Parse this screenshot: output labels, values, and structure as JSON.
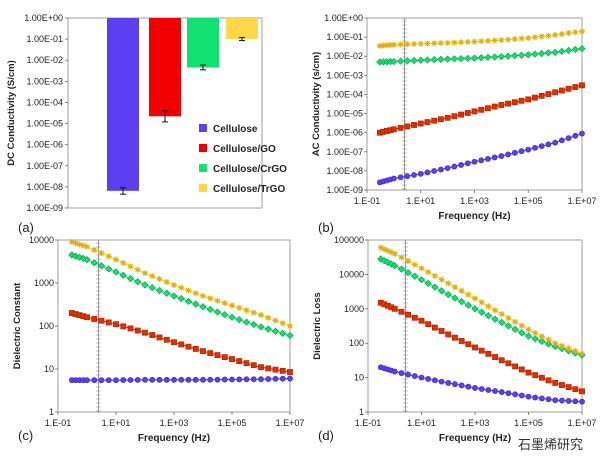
{
  "watermark": "石墨烯研究",
  "chart_data": [
    {
      "panel_label": "(a)",
      "type": "bar",
      "ylabel": "DC Conductivity (S/cm)",
      "yscale": "log",
      "ylim": [
        1e-09,
        1
      ],
      "yticks": [
        "1.00E+00",
        "1.00E-01",
        "1.00E-02",
        "1.00E-03",
        "1.00E-04",
        "1.00E-05",
        "1.00E-06",
        "1.00E-07",
        "1.00E-08",
        "1.00E-09"
      ],
      "categories": [
        "Cellulose",
        "Cellulose/GO",
        "Cellulose/CrGO",
        "Cellulose/TrGO"
      ],
      "values": [
        6.5e-09,
        2.2e-05,
        0.0045,
        0.1
      ],
      "errors": [
        [
          4.5e-09,
          9e-09
        ],
        [
          1.2e-05,
          4e-05
        ],
        [
          0.0035,
          0.006
        ],
        [
          0.085,
          0.12
        ]
      ],
      "colors": [
        "#5b3ff0",
        "#f00000",
        "#12e070",
        "#ffd84a"
      ],
      "legend": [
        "Cellulose",
        "Cellulose/GO",
        "Cellulose/CrGO",
        "Cellulose/TrGO"
      ],
      "legend_position": "lower-right"
    },
    {
      "panel_label": "(b)",
      "type": "line",
      "xlabel": "Frequency (Hz)",
      "ylabel": "AC Conductivity (s/cm)",
      "xscale": "log",
      "yscale": "log",
      "xlim": [
        0.1,
        10000000.0
      ],
      "ylim": [
        1e-09,
        1
      ],
      "xticks": [
        "1.E-01",
        "1.E+01",
        "1.E+03",
        "1.E+05",
        "1.E+07"
      ],
      "yticks": [
        "1.00E+00",
        "1.00E-01",
        "1.00E-02",
        "1.00E-03",
        "1.00E-04",
        "1.00E-05",
        "1.00E-06",
        "1.00E-07",
        "1.00E-08",
        "1.00E-09"
      ],
      "vline_x": 2.5,
      "series": [
        {
          "color": "#5b3ff0",
          "marker": "circle",
          "x": [
            0.3,
            1,
            10,
            100,
            1000,
            10000,
            100000,
            1000000,
            10000000
          ],
          "y": [
            2.5e-09,
            4e-09,
            7e-09,
            1.4e-08,
            3e-08,
            6e-08,
            1.3e-07,
            3e-07,
            9e-07
          ]
        },
        {
          "color": "#e03000",
          "marker": "square",
          "x": [
            0.3,
            1,
            10,
            100,
            1000,
            10000,
            100000,
            1000000,
            10000000
          ],
          "y": [
            1e-06,
            1.5e-06,
            3e-06,
            6e-06,
            1.3e-05,
            2.8e-05,
            5.5e-05,
            0.00013,
            0.0003
          ]
        },
        {
          "color": "#12e070",
          "marker": "diamond",
          "x": [
            0.3,
            1,
            10,
            100,
            1000,
            10000,
            100000,
            1000000,
            10000000
          ],
          "y": [
            0.005,
            0.0053,
            0.0062,
            0.007,
            0.008,
            0.0095,
            0.012,
            0.016,
            0.025
          ]
        },
        {
          "color": "#ffd84a",
          "marker": "star",
          "x": [
            0.3,
            1,
            10,
            100,
            1000,
            10000,
            100000,
            1000000,
            10000000
          ],
          "y": [
            0.035,
            0.04,
            0.045,
            0.05,
            0.058,
            0.07,
            0.09,
            0.13,
            0.2
          ]
        }
      ]
    },
    {
      "panel_label": "(c)",
      "type": "line",
      "xlabel": "Frequency (Hz)",
      "ylabel": "Dielectric Constant",
      "xscale": "log",
      "yscale": "log",
      "xlim": [
        0.1,
        10000000.0
      ],
      "ylim": [
        1,
        10000
      ],
      "xticks": [
        "1.E-01",
        "1.E+01",
        "1.E+03",
        "1.E+05",
        "1.E+07"
      ],
      "yticks": [
        "10000",
        "1000",
        "100",
        "10",
        "1"
      ],
      "vline_x": 2.5,
      "series": [
        {
          "color": "#5b3ff0",
          "marker": "circle",
          "x": [
            0.3,
            1,
            10,
            100,
            1000,
            10000,
            100000,
            1000000,
            10000000
          ],
          "y": [
            5.5,
            5.5,
            5.5,
            5.6,
            5.6,
            5.6,
            5.7,
            5.8,
            6
          ]
        },
        {
          "color": "#e03000",
          "marker": "square",
          "x": [
            0.3,
            1,
            10,
            100,
            1000,
            10000,
            100000,
            1000000,
            10000000
          ],
          "y": [
            200,
            160,
            110,
            70,
            42,
            26,
            17,
            11,
            8.5
          ]
        },
        {
          "color": "#12e070",
          "marker": "diamond",
          "x": [
            0.3,
            1,
            10,
            100,
            1000,
            10000,
            100000,
            1000000,
            10000000
          ],
          "y": [
            4500,
            3500,
            1800,
            900,
            500,
            280,
            160,
            95,
            60
          ]
        },
        {
          "color": "#ffd84a",
          "marker": "star",
          "x": [
            0.3,
            1,
            10,
            100,
            1000,
            10000,
            100000,
            1000000,
            10000000
          ],
          "y": [
            9000,
            7000,
            3500,
            1700,
            900,
            500,
            300,
            180,
            100
          ]
        }
      ]
    },
    {
      "panel_label": "(d)",
      "type": "line",
      "xlabel": "Frequency (Hz)",
      "ylabel": "Dielectric Loss",
      "xscale": "log",
      "yscale": "log",
      "xlim": [
        0.1,
        10000000.0
      ],
      "ylim": [
        1,
        100000
      ],
      "xticks": [
        "1.E-01",
        "1.E+01",
        "1.E+03",
        "1.E+05",
        "1.E+07"
      ],
      "yticks": [
        "100000",
        "10000",
        "1000",
        "100",
        "10",
        "1"
      ],
      "vline_x": 2.5,
      "series": [
        {
          "color": "#5b3ff0",
          "marker": "circle",
          "x": [
            0.3,
            1,
            10,
            100,
            1000,
            10000,
            100000,
            1000000,
            10000000
          ],
          "y": [
            20,
            15,
            10,
            7,
            5,
            3.8,
            2.8,
            2.2,
            2
          ]
        },
        {
          "color": "#e03000",
          "marker": "square",
          "x": [
            0.3,
            1,
            10,
            100,
            1000,
            10000,
            100000,
            1000000,
            10000000
          ],
          "y": [
            1500,
            1000,
            450,
            180,
            75,
            32,
            14,
            7,
            4
          ]
        },
        {
          "color": "#12e070",
          "marker": "diamond",
          "x": [
            0.3,
            1,
            10,
            100,
            1000,
            10000,
            100000,
            1000000,
            10000000
          ],
          "y": [
            28000,
            18000,
            7000,
            2600,
            1000,
            400,
            160,
            80,
            45
          ]
        },
        {
          "color": "#ffd84a",
          "marker": "star",
          "x": [
            0.3,
            1,
            10,
            100,
            1000,
            10000,
            100000,
            1000000,
            10000000
          ],
          "y": [
            60000,
            40000,
            15000,
            5500,
            2000,
            700,
            250,
            100,
            50
          ]
        }
      ]
    }
  ]
}
